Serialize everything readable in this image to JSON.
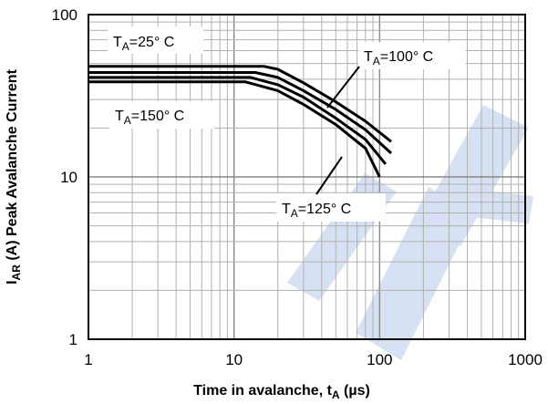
{
  "chart_data": {
    "type": "line",
    "scale": {
      "x": "log",
      "y": "log"
    },
    "xlim": [
      1,
      1000
    ],
    "ylim": [
      1,
      100
    ],
    "xticks": [
      1,
      10,
      100,
      1000
    ],
    "yticks": [
      1,
      10,
      100
    ],
    "xtick_labels": [
      "1",
      "10",
      "100",
      "1000"
    ],
    "ytick_labels": [
      "1",
      "10",
      "100"
    ],
    "grid": true,
    "xlabel": {
      "main": "Time in avalanche, t",
      "sub": "A",
      "unit": "(µs)"
    },
    "ylabel": {
      "main": "I",
      "sub": "AR",
      "rest": "(A) Peak Avalanche Current"
    },
    "series": [
      {
        "name": "TA=25°C",
        "x": [
          1,
          16,
          20,
          30,
          50,
          80,
          120
        ],
        "y": [
          48,
          48,
          46,
          38,
          29,
          22,
          16.5
        ]
      },
      {
        "name": "TA=100°C",
        "x": [
          1,
          14,
          20,
          30,
          50,
          80,
          120
        ],
        "y": [
          44,
          44,
          41,
          34,
          26,
          19.5,
          14
        ]
      },
      {
        "name": "TA=125°C",
        "x": [
          1,
          13,
          20,
          30,
          50,
          80,
          110
        ],
        "y": [
          41,
          41,
          37,
          31,
          23,
          17,
          12
        ]
      },
      {
        "name": "TA=150°C",
        "x": [
          1,
          12,
          20,
          30,
          50,
          80,
          100
        ],
        "y": [
          38.5,
          38.5,
          34,
          28,
          21,
          15,
          10
        ]
      }
    ],
    "annotations": [
      {
        "base": "T",
        "sub": "A",
        "value": "=25°  C"
      },
      {
        "base": "T",
        "sub": "A",
        "value": "=100°  C"
      },
      {
        "base": "T",
        "sub": "A",
        "value": "=150°  C"
      },
      {
        "base": "T",
        "sub": "A",
        "value": "=125°  C"
      }
    ],
    "colors": {
      "line": "#000000",
      "grid": "#9a9a9a",
      "watermark": "#c9d7f0"
    }
  }
}
